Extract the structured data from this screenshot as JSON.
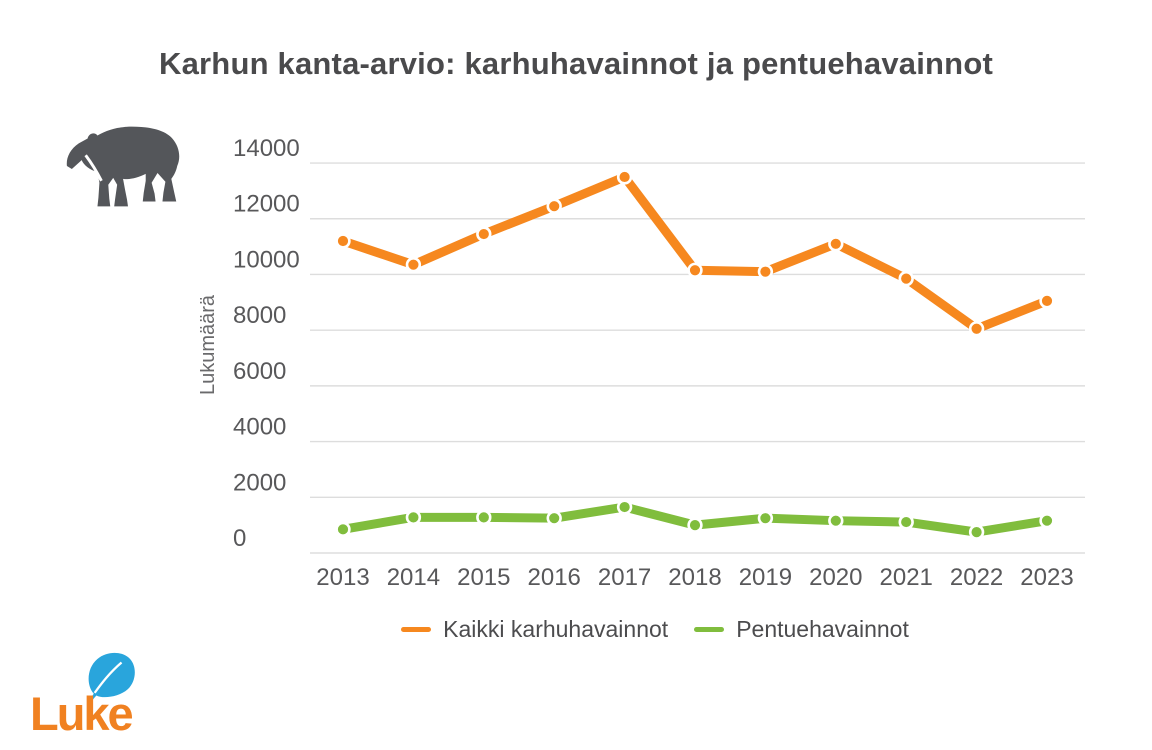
{
  "header": {
    "title": "Karhun kanta-arvio: karhuhavainnot ja pentuehavainnot"
  },
  "chart_data": {
    "type": "line",
    "title": "Karhun kanta-arvio: karhuhavainnot ja pentuehavainnot",
    "xlabel": "",
    "ylabel": "Lukumäärä",
    "categories": [
      "2013",
      "2014",
      "2015",
      "2016",
      "2017",
      "2018",
      "2019",
      "2020",
      "2021",
      "2022",
      "2023"
    ],
    "yticks": [
      0,
      2000,
      4000,
      6000,
      8000,
      10000,
      12000,
      14000
    ],
    "ylim": [
      0,
      14000
    ],
    "grid": true,
    "legend_position": "bottom",
    "series": [
      {
        "name": "Kaikki karhuhavainnot",
        "color": "#f6881f",
        "values": [
          11200,
          10350,
          11450,
          12450,
          13500,
          10150,
          10100,
          11100,
          9850,
          8050,
          9050
        ]
      },
      {
        "name": "Pentuehavainnot",
        "color": "#80bd3d",
        "values": [
          850,
          1280,
          1280,
          1250,
          1650,
          1000,
          1250,
          1160,
          1110,
          750,
          1160
        ]
      }
    ]
  },
  "icons": {
    "bear": "bear-silhouette",
    "leaf": "luke-leaf"
  },
  "branding": {
    "logo_text": "Luke",
    "logo_text_color": "#f08121",
    "logo_leaf_color": "#29a5dc"
  },
  "colors": {
    "title_text": "#4a4a4c",
    "axis_text": "#58585a",
    "axis_title_text": "#6a6a6c",
    "gridline": "#dddddd",
    "bear_icon": "#54565a",
    "background": "#ffffff"
  }
}
